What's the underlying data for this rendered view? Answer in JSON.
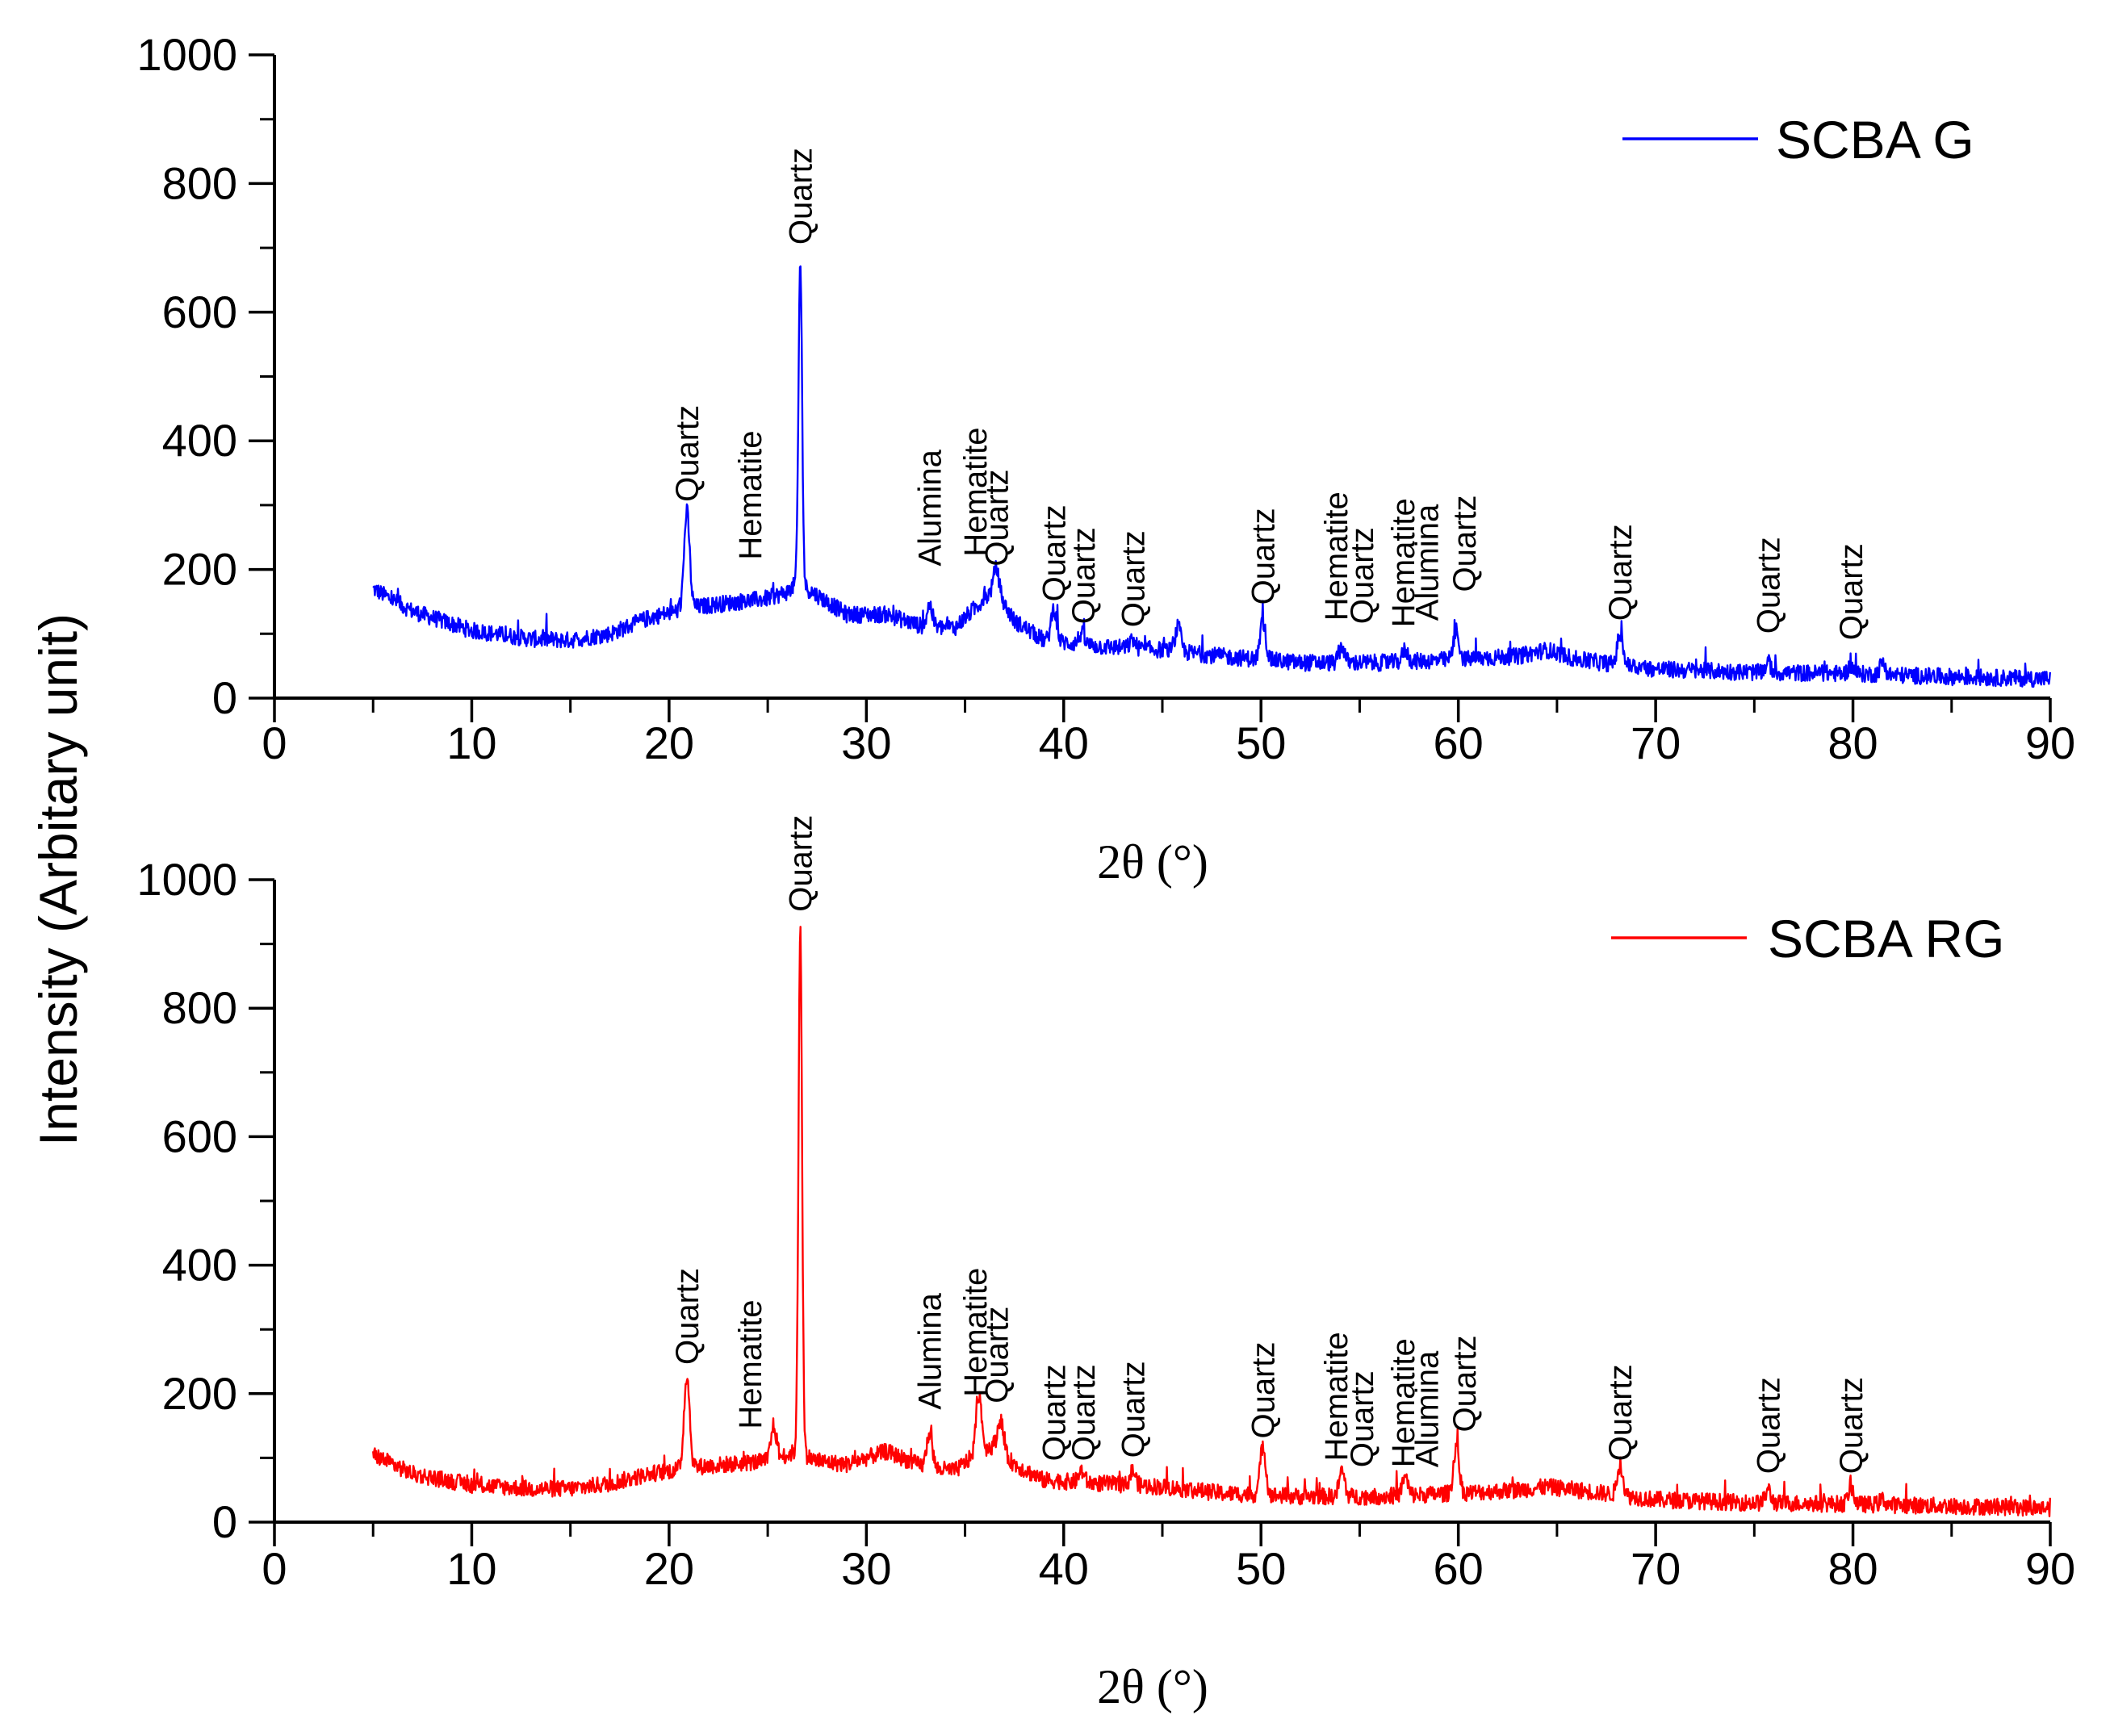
{
  "ylabel_shared": "Intensity (Arbitary unit)",
  "chart_data": [
    {
      "type": "line",
      "title": "",
      "xlabel": "2θ (°)",
      "ylabel": "Intensity (Arbitary unit)",
      "xlim": [
        0,
        90
      ],
      "ylim": [
        0,
        1000
      ],
      "xticks": [
        "0",
        "10",
        "20",
        "30",
        "40",
        "50",
        "60",
        "70",
        "80",
        "90"
      ],
      "yticks": [
        "0",
        "200",
        "400",
        "600",
        "800",
        "1000"
      ],
      "legend_position": "top-right",
      "series": [
        {
          "name": "SCBA G",
          "color": "#0000ff",
          "background": [
            [
              5,
              170
            ],
            [
              7,
              135
            ],
            [
              10,
              105
            ],
            [
              13,
              92
            ],
            [
              15,
              90
            ],
            [
              17,
              100
            ],
            [
              19,
              125
            ],
            [
              21,
              140
            ],
            [
              23,
              148
            ],
            [
              25,
              155
            ],
            [
              26,
              165
            ],
            [
              26.5,
              180
            ],
            [
              27.5,
              160
            ],
            [
              29,
              130
            ],
            [
              31,
              130
            ],
            [
              33,
              110
            ],
            [
              34.5,
              110
            ],
            [
              35.5,
              140
            ],
            [
              36.5,
              170
            ],
            [
              37.5,
              120
            ],
            [
              39,
              90
            ],
            [
              42,
              80
            ],
            [
              45,
              75
            ],
            [
              48,
              65
            ],
            [
              52,
              55
            ],
            [
              56,
              55
            ],
            [
              60,
              60
            ],
            [
              63,
              65
            ],
            [
              64.5,
              75
            ],
            [
              66,
              60
            ],
            [
              70,
              45
            ],
            [
              75,
              40
            ],
            [
              80,
              38
            ],
            [
              85,
              33
            ],
            [
              90,
              30
            ]
          ],
          "peaks": [
            [
              20.9,
              290
            ],
            [
              26.65,
              680
            ],
            [
              33.2,
              145
            ],
            [
              36.6,
              200
            ],
            [
              39.5,
              140
            ],
            [
              40.9,
              100
            ],
            [
              43.5,
              90
            ],
            [
              45.8,
              110
            ],
            [
              50.1,
              120
            ],
            [
              54.1,
              80
            ],
            [
              57.3,
              75
            ],
            [
              59.9,
              105
            ],
            [
              68.2,
              100
            ],
            [
              75.7,
              55
            ],
            [
              79.9,
              50
            ],
            [
              81.5,
              55
            ]
          ]
        }
      ],
      "annotations": [
        {
          "text": "Quartz",
          "x": 20.9,
          "y": 300
        },
        {
          "text": "Hematite",
          "x": 24.1,
          "y": 210
        },
        {
          "text": "Quartz",
          "x": 26.65,
          "y": 700
        },
        {
          "text": "Alumina",
          "x": 33.2,
          "y": 200
        },
        {
          "text": "Hematite",
          "x": 35.5,
          "y": 215
        },
        {
          "text": "Quartz",
          "x": 36.6,
          "y": 200
        },
        {
          "text": "Quartz",
          "x": 39.5,
          "y": 145
        },
        {
          "text": "Quartz",
          "x": 41.0,
          "y": 110
        },
        {
          "text": "Quartz",
          "x": 43.5,
          "y": 105
        },
        {
          "text": "Quartz",
          "x": 50.1,
          "y": 140
        },
        {
          "text": "Hematite",
          "x": 53.8,
          "y": 115
        },
        {
          "text": "Quartz",
          "x": 55.1,
          "y": 110
        },
        {
          "text": "Hematite",
          "x": 57.2,
          "y": 105
        },
        {
          "text": "Alumina",
          "x": 58.4,
          "y": 115
        },
        {
          "text": "Quartz",
          "x": 60.3,
          "y": 160
        },
        {
          "text": "Quartz",
          "x": 68.2,
          "y": 115
        },
        {
          "text": "Quartz",
          "x": 75.7,
          "y": 95
        },
        {
          "text": "Quartz",
          "x": 79.9,
          "y": 85
        }
      ]
    },
    {
      "type": "line",
      "title": "",
      "xlabel": "2θ (°)",
      "ylabel": "Intensity (Arbitary unit)",
      "xlim": [
        0,
        90
      ],
      "ylim": [
        0,
        1000
      ],
      "xticks": [
        "0",
        "10",
        "20",
        "30",
        "40",
        "50",
        "60",
        "70",
        "80",
        "90"
      ],
      "yticks": [
        "0",
        "200",
        "400",
        "600",
        "800",
        "1000"
      ],
      "legend_position": "top-right",
      "series": [
        {
          "name": "SCBA RG",
          "color": "#ff0000",
          "background": [
            [
              5,
              105
            ],
            [
              7,
              75
            ],
            [
              10,
              58
            ],
            [
              13,
              52
            ],
            [
              15,
              52
            ],
            [
              17,
              60
            ],
            [
              19,
              75
            ],
            [
              21,
              85
            ],
            [
              23,
              90
            ],
            [
              25,
              95
            ],
            [
              26.5,
              110
            ],
            [
              27.5,
              95
            ],
            [
              29,
              90
            ],
            [
              31,
              110
            ],
            [
              33,
              85
            ],
            [
              34.5,
              80
            ],
            [
              35.5,
              105
            ],
            [
              36.5,
              120
            ],
            [
              37.5,
              90
            ],
            [
              39,
              65
            ],
            [
              42,
              60
            ],
            [
              45,
              55
            ],
            [
              48,
              45
            ],
            [
              52,
              40
            ],
            [
              56,
              40
            ],
            [
              60,
              45
            ],
            [
              63,
              50
            ],
            [
              64.5,
              55
            ],
            [
              66,
              50
            ],
            [
              70,
              35
            ],
            [
              75,
              30
            ],
            [
              80,
              28
            ],
            [
              85,
              25
            ],
            [
              90,
              22
            ]
          ],
          "peaks": [
            [
              20.9,
              230
            ],
            [
              25.3,
              150
            ],
            [
              26.65,
              930
            ],
            [
              33.2,
              140
            ],
            [
              35.7,
              200
            ],
            [
              36.8,
              160
            ],
            [
              39.6,
              65
            ],
            [
              40.9,
              80
            ],
            [
              43.5,
              80
            ],
            [
              50.1,
              120
            ],
            [
              54.1,
              80
            ],
            [
              57.3,
              70
            ],
            [
              59.9,
              120
            ],
            [
              68.2,
              90
            ],
            [
              75.7,
              50
            ],
            [
              79.9,
              55
            ],
            [
              81.5,
              35
            ]
          ]
        }
      ],
      "annotations": [
        {
          "text": "Quartz",
          "x": 20.9,
          "y": 240
        },
        {
          "text": "Hematite",
          "x": 24.1,
          "y": 140
        },
        {
          "text": "Quartz",
          "x": 26.65,
          "y": 945
        },
        {
          "text": "Alumina",
          "x": 33.2,
          "y": 170
        },
        {
          "text": "Hematite",
          "x": 35.5,
          "y": 190
        },
        {
          "text": "Quartz",
          "x": 36.6,
          "y": 180
        },
        {
          "text": "Quartz",
          "x": 39.5,
          "y": 90
        },
        {
          "text": "Quartz",
          "x": 41.0,
          "y": 90
        },
        {
          "text": "Quartz",
          "x": 43.5,
          "y": 95
        },
        {
          "text": "Quartz",
          "x": 50.1,
          "y": 125
        },
        {
          "text": "Hematite",
          "x": 53.8,
          "y": 90
        },
        {
          "text": "Quartz",
          "x": 55.1,
          "y": 80
        },
        {
          "text": "Hematite",
          "x": 57.2,
          "y": 80
        },
        {
          "text": "Alumina",
          "x": 58.4,
          "y": 80
        },
        {
          "text": "Quartz",
          "x": 60.3,
          "y": 135
        },
        {
          "text": "Quartz",
          "x": 68.2,
          "y": 90
        },
        {
          "text": "Quartz",
          "x": 75.7,
          "y": 70
        },
        {
          "text": "Quartz",
          "x": 79.9,
          "y": 70
        }
      ]
    }
  ]
}
